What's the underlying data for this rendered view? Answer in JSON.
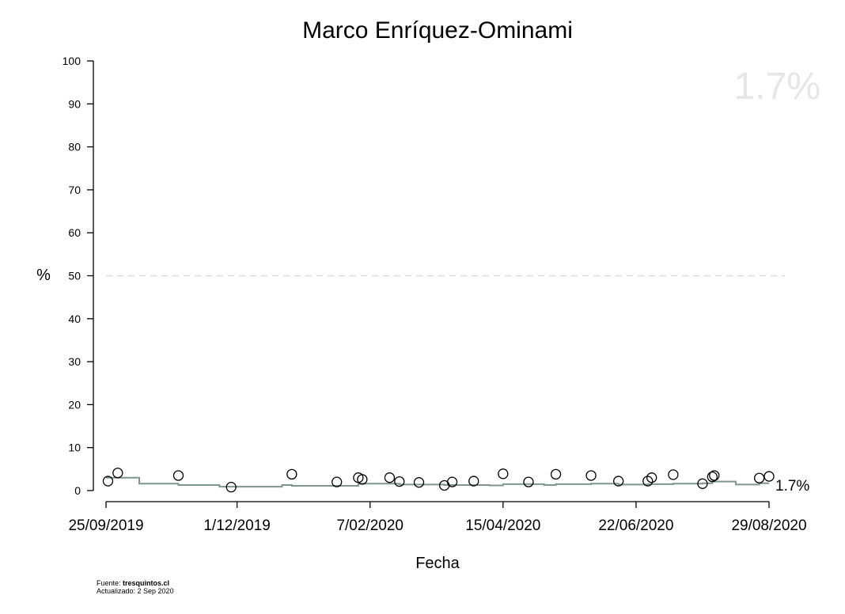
{
  "chart_data": {
    "type": "scatter",
    "title": "Marco Enríquez-Ominami",
    "xlabel": "Fecha",
    "ylabel": "%",
    "ylim": [
      0,
      100
    ],
    "xlim": [
      "2019-09-25",
      "2020-08-29"
    ],
    "y_ticks": [
      0,
      10,
      20,
      30,
      40,
      50,
      60,
      70,
      80,
      90,
      100
    ],
    "x_ticks": [
      {
        "date": "2019-09-25",
        "label": "25/09/2019"
      },
      {
        "date": "2019-12-01",
        "label": "1/12/2019"
      },
      {
        "date": "2020-02-07",
        "label": "7/02/2020"
      },
      {
        "date": "2020-04-15",
        "label": "15/04/2020"
      },
      {
        "date": "2020-06-22",
        "label": "22/06/2020"
      },
      {
        "date": "2020-08-29",
        "label": "29/08/2020"
      }
    ],
    "reference_line": {
      "y": 50,
      "style": "dashed",
      "color": "#d9d9d9"
    },
    "big_value_label": "1.7%",
    "end_label": "1.7%",
    "points_color": "#000000",
    "trend_color": "#7f9590",
    "points": [
      {
        "x": "2019-09-26",
        "y": 2.2
      },
      {
        "x": "2019-10-01",
        "y": 4.1
      },
      {
        "x": "2019-11-01",
        "y": 3.5
      },
      {
        "x": "2019-11-28",
        "y": 0.8
      },
      {
        "x": "2019-12-29",
        "y": 3.8
      },
      {
        "x": "2020-01-21",
        "y": 2.0
      },
      {
        "x": "2020-02-01",
        "y": 3.0
      },
      {
        "x": "2020-02-03",
        "y": 2.6
      },
      {
        "x": "2020-02-17",
        "y": 3.0
      },
      {
        "x": "2020-02-22",
        "y": 2.1
      },
      {
        "x": "2020-03-03",
        "y": 1.9
      },
      {
        "x": "2020-03-16",
        "y": 1.2
      },
      {
        "x": "2020-03-20",
        "y": 2.0
      },
      {
        "x": "2020-03-31",
        "y": 2.2
      },
      {
        "x": "2020-04-15",
        "y": 3.9
      },
      {
        "x": "2020-04-28",
        "y": 2.0
      },
      {
        "x": "2020-05-12",
        "y": 3.8
      },
      {
        "x": "2020-05-30",
        "y": 3.5
      },
      {
        "x": "2020-06-13",
        "y": 2.2
      },
      {
        "x": "2020-06-28",
        "y": 2.2
      },
      {
        "x": "2020-06-30",
        "y": 3.0
      },
      {
        "x": "2020-07-11",
        "y": 3.7
      },
      {
        "x": "2020-07-26",
        "y": 1.6
      },
      {
        "x": "2020-07-31",
        "y": 3.2
      },
      {
        "x": "2020-08-01",
        "y": 3.5
      },
      {
        "x": "2020-08-24",
        "y": 2.9
      },
      {
        "x": "2020-08-29",
        "y": 3.3
      }
    ],
    "trend": [
      {
        "x": "2019-09-25",
        "y": 3.0
      },
      {
        "x": "2019-10-12",
        "y": 1.6
      },
      {
        "x": "2019-11-01",
        "y": 1.3
      },
      {
        "x": "2019-11-22",
        "y": 0.9
      },
      {
        "x": "2019-12-24",
        "y": 1.3
      },
      {
        "x": "2019-12-29",
        "y": 1.1
      },
      {
        "x": "2020-02-01",
        "y": 1.6
      },
      {
        "x": "2020-02-22",
        "y": 1.4
      },
      {
        "x": "2020-03-16",
        "y": 1.3
      },
      {
        "x": "2020-04-08",
        "y": 1.2
      },
      {
        "x": "2020-04-15",
        "y": 1.5
      },
      {
        "x": "2020-05-06",
        "y": 1.3
      },
      {
        "x": "2020-05-12",
        "y": 1.5
      },
      {
        "x": "2020-05-30",
        "y": 1.6
      },
      {
        "x": "2020-06-13",
        "y": 1.4
      },
      {
        "x": "2020-06-28",
        "y": 1.5
      },
      {
        "x": "2020-07-11",
        "y": 1.6
      },
      {
        "x": "2020-07-26",
        "y": 1.7
      },
      {
        "x": "2020-07-31",
        "y": 2.1
      },
      {
        "x": "2020-08-12",
        "y": 1.4
      },
      {
        "x": "2020-08-24",
        "y": 1.7
      },
      {
        "x": "2020-08-29",
        "y": 1.7
      }
    ]
  },
  "footer": {
    "source_prefix": "Fuente: ",
    "source_name": "tresquintos.cl",
    "updated": "Actualizado: 2 Sep 2020"
  }
}
